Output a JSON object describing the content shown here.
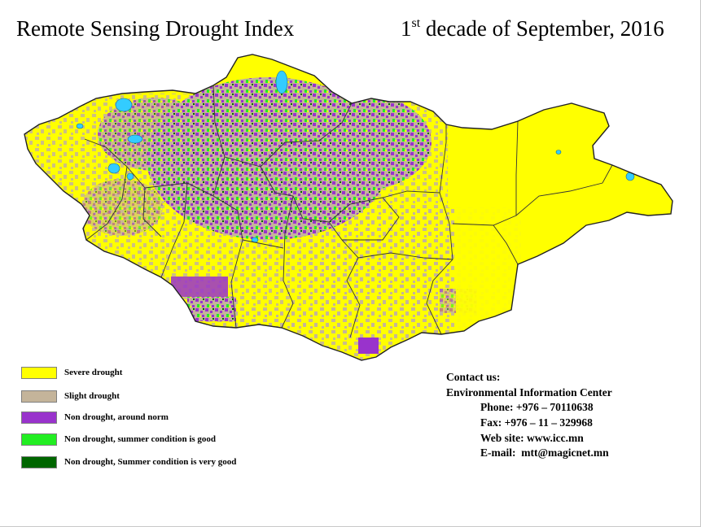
{
  "title": "Remote Sensing Drought Index",
  "period": {
    "ordinal": "1",
    "suffix": "st",
    "rest": " decade of September, 2016"
  },
  "colors": {
    "severe": "#ffff00",
    "slight": "#c4b49a",
    "around_norm": "#9933cc",
    "good": "#22ee22",
    "very_good": "#006600",
    "water": "#33ccff",
    "border": "#222222"
  },
  "legend": [
    {
      "label": "Severe drought",
      "color": "#ffff00"
    },
    {
      "label": "Slight drought",
      "color": "#c4b49a"
    },
    {
      "label": "Non drought, around norm",
      "color": "#9933cc"
    },
    {
      "label": "Non drought, summer condition is good",
      "color": "#22ee22"
    },
    {
      "label": "Non drought, Summer condition is very good",
      "color": "#006600"
    }
  ],
  "contact": {
    "heading": "Contact us:",
    "org": "Environmental Information Center",
    "phone": "Phone: +976 – 70110638",
    "fax": "Fax: +976 – 11 – 329968",
    "web": "Web site: www.icc.mn",
    "email": "E-mail:  mtt@magicnet.mn"
  }
}
